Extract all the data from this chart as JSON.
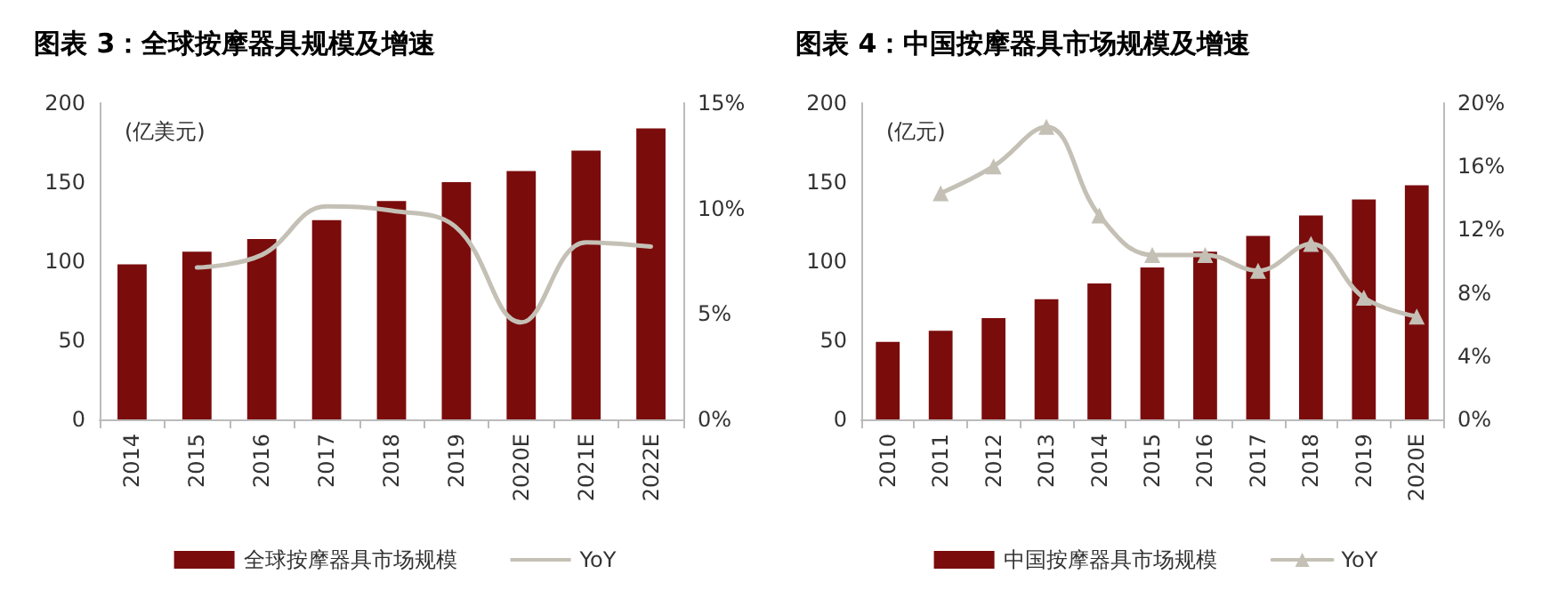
{
  "chart_data": [
    {
      "type": "bar",
      "title": "图表 3：全球按摩器具规模及增速",
      "ylabel": "(亿美元)",
      "categories": [
        "2014",
        "2015",
        "2016",
        "2017",
        "2018",
        "2019",
        "2020E",
        "2021E",
        "2022E"
      ],
      "series": [
        {
          "name": "全球按摩器具市场规模",
          "color": "#7b0c0c",
          "values": [
            98,
            106,
            114,
            126,
            138,
            150,
            157,
            170,
            184
          ]
        },
        {
          "name": "YoY",
          "type": "line",
          "axis": "y2",
          "color": "#c4c0b5",
          "marker": "none",
          "values": [
            null,
            7.2,
            7.8,
            10.1,
            9.9,
            9.1,
            4.6,
            8.4,
            8.2
          ]
        }
      ],
      "ylim": [
        0,
        200
      ],
      "yticks": [
        0,
        50,
        100,
        150,
        200
      ],
      "y2lim": [
        0,
        15
      ],
      "y2ticks": [
        {
          "value": 0,
          "label": "0%"
        },
        {
          "value": 5,
          "label": "5%"
        },
        {
          "value": 10,
          "label": "10%"
        },
        {
          "value": 15,
          "label": "15%"
        }
      ],
      "grid": false,
      "legend": "bottom"
    },
    {
      "type": "bar",
      "title": "图表 4：中国按摩器具市场规模及增速",
      "ylabel": "(亿元)",
      "categories": [
        "2010",
        "2011",
        "2012",
        "2013",
        "2014",
        "2015",
        "2016",
        "2017",
        "2018",
        "2019",
        "2020E"
      ],
      "series": [
        {
          "name": "中国按摩器具市场规模",
          "color": "#7b0c0c",
          "values": [
            49,
            56,
            64,
            76,
            86,
            96,
            106,
            116,
            129,
            139,
            148
          ]
        },
        {
          "name": "YoY",
          "type": "line",
          "axis": "y2",
          "color": "#c4c0b5",
          "marker": "triangle",
          "values": [
            null,
            14.3,
            16.0,
            18.5,
            12.9,
            10.4,
            10.4,
            9.4,
            11.1,
            7.7,
            6.5
          ]
        }
      ],
      "ylim": [
        0,
        200
      ],
      "yticks": [
        0,
        50,
        100,
        150,
        200
      ],
      "y2lim": [
        0,
        20
      ],
      "y2ticks": [
        {
          "value": 0,
          "label": "0%"
        },
        {
          "value": 4,
          "label": "4%"
        },
        {
          "value": 8,
          "label": "8%"
        },
        {
          "value": 12,
          "label": "12%"
        },
        {
          "value": 16,
          "label": "16%"
        },
        {
          "value": 20,
          "label": "20%"
        }
      ],
      "grid": false,
      "legend": "bottom"
    }
  ]
}
